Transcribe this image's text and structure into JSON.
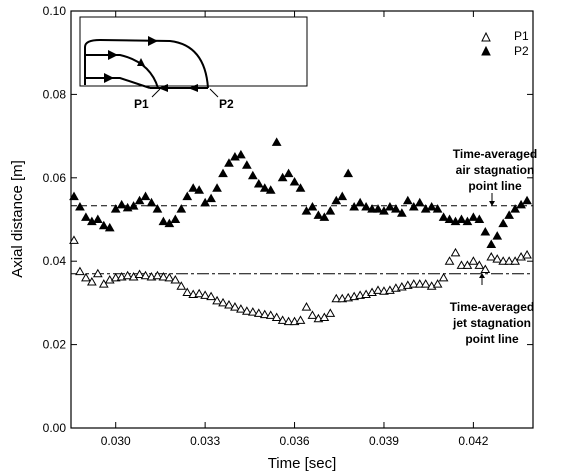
{
  "chart_data": {
    "type": "scatter",
    "xlabel": "Time [sec]",
    "ylabel": "Axial distance [m]",
    "xlim": [
      0.0285,
      0.044
    ],
    "ylim": [
      0.0,
      0.1
    ],
    "x_ticks": [
      {
        "value": 0.03,
        "label": "0.030"
      },
      {
        "value": 0.033,
        "label": "0.033"
      },
      {
        "value": 0.036,
        "label": "0.036"
      },
      {
        "value": 0.039,
        "label": "0.039"
      },
      {
        "value": 0.042,
        "label": "0.042"
      }
    ],
    "y_ticks": [
      {
        "value": 0.0,
        "label": "0.00"
      },
      {
        "value": 0.02,
        "label": "0.02"
      },
      {
        "value": 0.04,
        "label": "0.04"
      },
      {
        "value": 0.06,
        "label": "0.06"
      },
      {
        "value": 0.08,
        "label": "0.08"
      },
      {
        "value": 0.1,
        "label": "0.10"
      }
    ],
    "legend": {
      "position": "top-right"
    },
    "series": [
      {
        "name": "P1",
        "marker": "open-triangle",
        "points": [
          [
            0.0286,
            0.045
          ],
          [
            0.0288,
            0.0375
          ],
          [
            0.029,
            0.036
          ],
          [
            0.0292,
            0.035
          ],
          [
            0.0294,
            0.037
          ],
          [
            0.0296,
            0.0345
          ],
          [
            0.0298,
            0.0355
          ],
          [
            0.03,
            0.036
          ],
          [
            0.0302,
            0.0362
          ],
          [
            0.0304,
            0.0365
          ],
          [
            0.0306,
            0.0362
          ],
          [
            0.0308,
            0.0368
          ],
          [
            0.031,
            0.0365
          ],
          [
            0.0312,
            0.0362
          ],
          [
            0.0314,
            0.0365
          ],
          [
            0.0316,
            0.0362
          ],
          [
            0.0318,
            0.036
          ],
          [
            0.032,
            0.0355
          ],
          [
            0.0322,
            0.034
          ],
          [
            0.0324,
            0.0325
          ],
          [
            0.0326,
            0.032
          ],
          [
            0.0328,
            0.0322
          ],
          [
            0.033,
            0.0318
          ],
          [
            0.0332,
            0.0315
          ],
          [
            0.0334,
            0.0305
          ],
          [
            0.0336,
            0.03
          ],
          [
            0.0338,
            0.0295
          ],
          [
            0.034,
            0.029
          ],
          [
            0.0342,
            0.0285
          ],
          [
            0.0344,
            0.028
          ],
          [
            0.0346,
            0.0278
          ],
          [
            0.0348,
            0.0275
          ],
          [
            0.035,
            0.0272
          ],
          [
            0.0352,
            0.027
          ],
          [
            0.0354,
            0.0265
          ],
          [
            0.0356,
            0.0258
          ],
          [
            0.0358,
            0.0255
          ],
          [
            0.036,
            0.0255
          ],
          [
            0.0362,
            0.0258
          ],
          [
            0.0364,
            0.029
          ],
          [
            0.0366,
            0.027
          ],
          [
            0.0368,
            0.0262
          ],
          [
            0.037,
            0.0265
          ],
          [
            0.0372,
            0.0275
          ],
          [
            0.0374,
            0.031
          ],
          [
            0.0376,
            0.031
          ],
          [
            0.0378,
            0.0312
          ],
          [
            0.038,
            0.0315
          ],
          [
            0.0382,
            0.0318
          ],
          [
            0.0384,
            0.032
          ],
          [
            0.0386,
            0.0325
          ],
          [
            0.0388,
            0.033
          ],
          [
            0.039,
            0.0328
          ],
          [
            0.0392,
            0.033
          ],
          [
            0.0394,
            0.0335
          ],
          [
            0.0396,
            0.0338
          ],
          [
            0.0398,
            0.0342
          ],
          [
            0.04,
            0.0345
          ],
          [
            0.0402,
            0.0345
          ],
          [
            0.0404,
            0.0345
          ],
          [
            0.0406,
            0.034
          ],
          [
            0.0408,
            0.0345
          ],
          [
            0.041,
            0.036
          ],
          [
            0.0412,
            0.04
          ],
          [
            0.0414,
            0.042
          ],
          [
            0.0416,
            0.039
          ],
          [
            0.0418,
            0.039
          ],
          [
            0.042,
            0.04
          ],
          [
            0.0422,
            0.039
          ],
          [
            0.0424,
            0.038
          ],
          [
            0.0426,
            0.041
          ],
          [
            0.0428,
            0.0405
          ],
          [
            0.043,
            0.04
          ],
          [
            0.0432,
            0.04
          ],
          [
            0.0434,
            0.04
          ],
          [
            0.0436,
            0.041
          ],
          [
            0.0438,
            0.0415
          ]
        ]
      },
      {
        "name": "P2",
        "marker": "filled-triangle",
        "points": [
          [
            0.0286,
            0.0555
          ],
          [
            0.0288,
            0.053
          ],
          [
            0.029,
            0.0505
          ],
          [
            0.0292,
            0.0495
          ],
          [
            0.0294,
            0.05
          ],
          [
            0.0296,
            0.0485
          ],
          [
            0.0298,
            0.048
          ],
          [
            0.03,
            0.0525
          ],
          [
            0.0302,
            0.0535
          ],
          [
            0.0304,
            0.0528
          ],
          [
            0.0306,
            0.0532
          ],
          [
            0.0308,
            0.0545
          ],
          [
            0.031,
            0.0555
          ],
          [
            0.0312,
            0.054
          ],
          [
            0.0314,
            0.0525
          ],
          [
            0.0316,
            0.0495
          ],
          [
            0.0318,
            0.049
          ],
          [
            0.032,
            0.05
          ],
          [
            0.0322,
            0.0525
          ],
          [
            0.0324,
            0.0555
          ],
          [
            0.0326,
            0.0575
          ],
          [
            0.0328,
            0.057
          ],
          [
            0.033,
            0.054
          ],
          [
            0.0332,
            0.055
          ],
          [
            0.0334,
            0.0575
          ],
          [
            0.0336,
            0.061
          ],
          [
            0.0338,
            0.0635
          ],
          [
            0.034,
            0.065
          ],
          [
            0.0342,
            0.0655
          ],
          [
            0.0344,
            0.063
          ],
          [
            0.0346,
            0.0605
          ],
          [
            0.0348,
            0.0585
          ],
          [
            0.035,
            0.0575
          ],
          [
            0.0352,
            0.057
          ],
          [
            0.0354,
            0.0685
          ],
          [
            0.0356,
            0.06
          ],
          [
            0.0358,
            0.061
          ],
          [
            0.036,
            0.059
          ],
          [
            0.0362,
            0.0575
          ],
          [
            0.0364,
            0.052
          ],
          [
            0.0366,
            0.053
          ],
          [
            0.0368,
            0.051
          ],
          [
            0.037,
            0.0505
          ],
          [
            0.0372,
            0.052
          ],
          [
            0.0374,
            0.0545
          ],
          [
            0.0376,
            0.0555
          ],
          [
            0.0378,
            0.061
          ],
          [
            0.038,
            0.053
          ],
          [
            0.0382,
            0.054
          ],
          [
            0.0384,
            0.053
          ],
          [
            0.0386,
            0.0525
          ],
          [
            0.0388,
            0.0525
          ],
          [
            0.039,
            0.052
          ],
          [
            0.0392,
            0.053
          ],
          [
            0.0394,
            0.0525
          ],
          [
            0.0396,
            0.0515
          ],
          [
            0.0398,
            0.0545
          ],
          [
            0.04,
            0.053
          ],
          [
            0.0402,
            0.054
          ],
          [
            0.0404,
            0.0525
          ],
          [
            0.0406,
            0.053
          ],
          [
            0.0408,
            0.0525
          ],
          [
            0.041,
            0.0505
          ],
          [
            0.0412,
            0.05
          ],
          [
            0.0414,
            0.0495
          ],
          [
            0.0416,
            0.05
          ],
          [
            0.0418,
            0.0495
          ],
          [
            0.042,
            0.0505
          ],
          [
            0.0422,
            0.05
          ],
          [
            0.0424,
            0.047
          ],
          [
            0.0426,
            0.044
          ],
          [
            0.0428,
            0.046
          ],
          [
            0.043,
            0.049
          ],
          [
            0.0432,
            0.051
          ],
          [
            0.0434,
            0.0525
          ],
          [
            0.0436,
            0.0535
          ],
          [
            0.0438,
            0.0545
          ]
        ]
      }
    ],
    "reference_lines": [
      {
        "name": "air-stagnation-line",
        "y": 0.0533,
        "style": "dashed"
      },
      {
        "name": "jet-stagnation-line",
        "y": 0.037,
        "style": "dash-dot"
      }
    ],
    "annotations": [
      {
        "name": "air-annotation",
        "lines": [
          "Time-averaged",
          "air stagnation",
          "point line"
        ]
      },
      {
        "name": "jet-annotation",
        "lines": [
          "Time-averaged",
          "jet stagnation",
          "point line"
        ]
      }
    ],
    "inset_labels": [
      "P1",
      "P2"
    ]
  }
}
